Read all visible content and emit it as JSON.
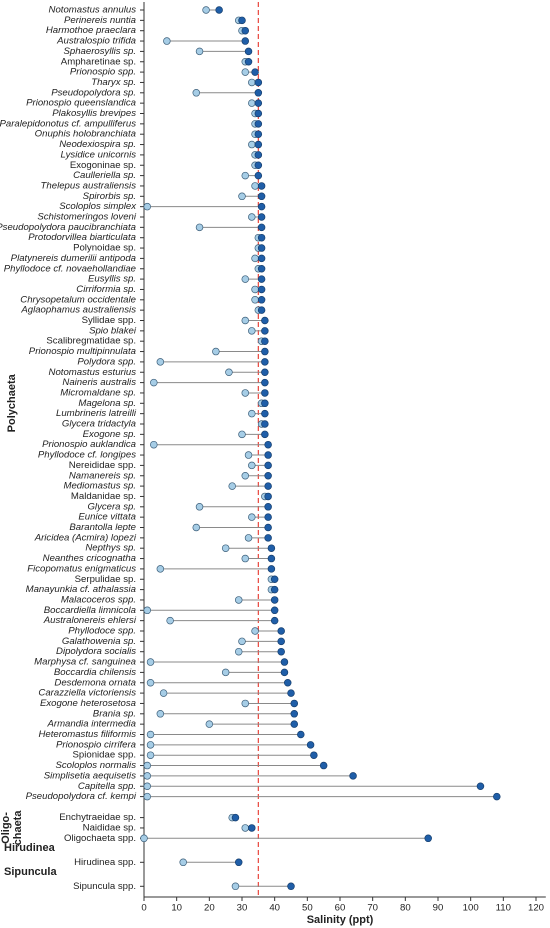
{
  "chart_data": {
    "type": "dumbbell",
    "x_label": "Salinity (ppt)",
    "xlim": [
      0,
      123
    ],
    "xticks": [
      0,
      10,
      20,
      30,
      40,
      50,
      60,
      70,
      80,
      90,
      100,
      110,
      120
    ],
    "reference_line": 35,
    "reference_color": "#e8453c",
    "min_color": "#a6cde6",
    "max_color": "#1f5ea8",
    "connector_color": "#8a8a8a",
    "groups": [
      {
        "name": [
          "Polychaeta"
        ],
        "label_orientation": "vertical",
        "categories": [
          "Notomastus annulus",
          "Perinereis nuntia",
          "Harmothoe praeclara",
          "Australospio trifida",
          "Sphaerosyllis sp.",
          "Ampharetinae sp.",
          "Prionospio spp.",
          "Tharyx sp.",
          "Pseudopolydora sp.",
          "Prionospio queenslandica",
          "Plakosyllis brevipes",
          "Paralepidonotus cf. ampulliferus",
          "Onuphis holobranchiata",
          "Neodexiospira sp.",
          "Lysidice unicornis",
          "Exogoninae sp.",
          "Caulleriella sp.",
          "Thelepus australiensis",
          "Spirorbis sp.",
          "Scoloplos simplex",
          "Schistomeringos loveni",
          "Pseudopolydora paucibranchiata",
          "Protodorvillea biarticulata",
          "Polynoidae sp.",
          "Platynereis dumerilii antipoda",
          "Phyllodoce cf. novaehollandiae",
          "Eusyllis sp.",
          "Cirriformia sp.",
          "Chrysopetalum occidentale",
          "Aglaophamus australiensis",
          "Syllidae spp.",
          "Spio blakei",
          "Scalibregmatidae sp.",
          "Prionospio multipinnulata",
          "Polydora spp.",
          "Notomastus esturius",
          "Naineris australis",
          "Micromaldane sp.",
          "Magelona sp.",
          "Lumbrineris latreilli",
          "Glycera tridactyla",
          "Exogone sp.",
          "Prionospio auklandica",
          "Phyllodoce cf. longipes",
          "Nereididae spp.",
          "Namanereis sp.",
          "Mediomastus sp.",
          "Maldanidae sp.",
          "Glycera sp.",
          "Eunice vittata",
          "Barantolla lepte",
          "Aricidea (Acmira) lopezi",
          "Nepthys sp.",
          "Neanthes cricognatha",
          "Ficopomatus enigmaticus",
          "Serpulidae sp.",
          "Manayunkia cf. athalassia",
          "Malacoceros spp.",
          "Boccardiella limnicola",
          "Australonereis ehlersi",
          "Phyllodoce spp.",
          "Galathowenia sp.",
          "Dipolydora socialis",
          "Marphysa cf. sanguinea",
          "Boccardia chilensis",
          "Desdemona ornata",
          "Carazziella victoriensis",
          "Exogone heterosetosa",
          "Brania sp.",
          "Armandia intermedia",
          "Heteromastus filiformis",
          "Prionospio cirrifera",
          "Spionidae spp.",
          "Scoloplos normalis",
          "Simplisetia aequisetis",
          "Capitella spp.",
          "Pseudopolydora cf. kempi"
        ],
        "min": [
          19,
          29,
          30,
          7,
          17,
          31,
          31,
          33,
          16,
          33,
          34,
          34,
          34,
          33,
          34,
          34,
          31,
          34,
          30,
          1,
          33,
          17,
          35,
          35,
          34,
          35,
          31,
          34,
          34,
          35,
          31,
          33,
          36,
          22,
          5,
          26,
          3,
          31,
          36,
          33,
          36,
          30,
          3,
          32,
          33,
          31,
          27,
          37,
          17,
          33,
          16,
          32,
          25,
          31,
          5,
          39,
          39,
          29,
          1,
          8,
          34,
          30,
          29,
          2,
          25,
          2,
          6,
          31,
          5,
          20,
          2,
          2,
          2,
          1,
          1,
          1,
          1
        ],
        "max": [
          23,
          30,
          31,
          31,
          32,
          32,
          34,
          35,
          35,
          35,
          35,
          35,
          35,
          35,
          35,
          35,
          35,
          36,
          36,
          36,
          36,
          36,
          36,
          36,
          36,
          36,
          36,
          36,
          36,
          36,
          37,
          37,
          37,
          37,
          37,
          37,
          37,
          37,
          37,
          37,
          37,
          37,
          38,
          38,
          38,
          38,
          38,
          38,
          38,
          38,
          38,
          38,
          39,
          39,
          39,
          40,
          40,
          40,
          40,
          40,
          42,
          42,
          42,
          43,
          43,
          44,
          45,
          46,
          46,
          46,
          48,
          51,
          52,
          55,
          64,
          103,
          108
        ]
      },
      {
        "name": [
          "Oligo-",
          "chaeta"
        ],
        "label_orientation": "vertical",
        "categories": [
          "Enchytraeidae sp.",
          "Naididae sp.",
          "Oligochaeta spp."
        ],
        "min": [
          27,
          31,
          0
        ],
        "max": [
          28,
          33,
          87
        ]
      },
      {
        "name": [
          "Hirudinea"
        ],
        "label_orientation": "horizontal",
        "categories": [
          "Hirudinea spp."
        ],
        "min": [
          12
        ],
        "max": [
          29
        ]
      },
      {
        "name": [
          "Sipuncula"
        ],
        "label_orientation": "horizontal",
        "categories": [
          "Sipuncula spp."
        ],
        "min": [
          28
        ],
        "max": [
          45
        ]
      }
    ]
  }
}
